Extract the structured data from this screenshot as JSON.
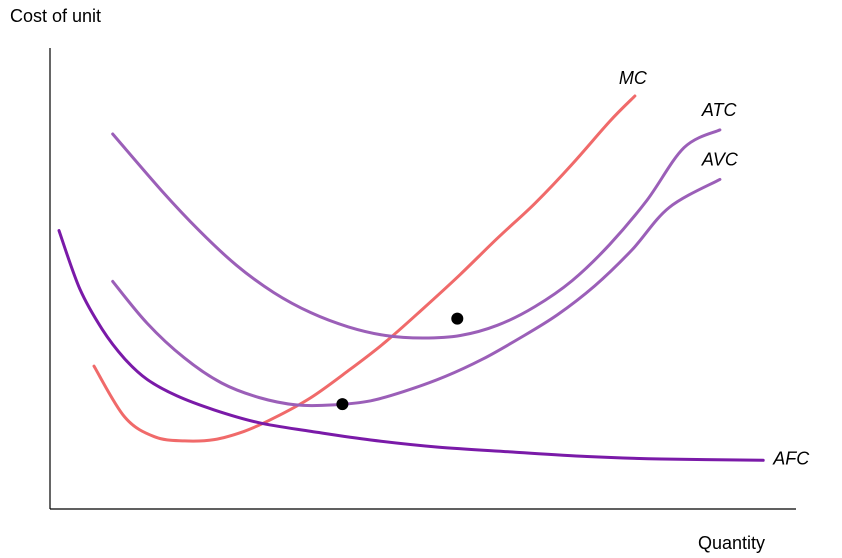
{
  "chart_data": {
    "type": "line",
    "title": "",
    "ylabel": "Cost of unit",
    "xlabel": "Quantity",
    "grid": false,
    "xlim": [
      0,
      100
    ],
    "ylim": [
      0,
      100
    ],
    "series": [
      {
        "name": "MC",
        "color": "#f06a6a",
        "x": [
          5.9,
          10,
          14,
          18,
          22,
          26,
          30,
          35,
          40,
          45,
          50,
          55,
          60,
          65,
          70,
          75,
          78.4
        ],
        "y": [
          34.6,
          22.3,
          17.5,
          16.5,
          16.8,
          18.8,
          22,
          27,
          33.5,
          40.5,
          48.5,
          56.8,
          65.6,
          74,
          83.5,
          93.8,
          100
        ]
      },
      {
        "name": "ATC",
        "color": "#9b5fb8",
        "x": [
          8.4,
          15,
          20,
          25,
          30,
          35,
          40,
          45,
          50,
          55,
          60,
          65,
          70,
          75,
          80,
          85,
          89.8
        ],
        "y": [
          90.8,
          77,
          67.4,
          59,
          52.4,
          47.5,
          44.1,
          42,
          41.4,
          42,
          44.5,
          49,
          55.3,
          64,
          74.7,
          87.5,
          91.8
        ]
      },
      {
        "name": "AVC",
        "color": "#9b5fb8",
        "x": [
          8.4,
          13,
          18,
          23,
          28,
          33,
          38,
          43,
          48,
          53,
          58,
          63,
          68,
          73,
          78,
          83,
          89.8
        ],
        "y": [
          55.1,
          45,
          36.6,
          30.5,
          27,
          25.2,
          25.2,
          26.2,
          28.8,
          32.1,
          36.3,
          41.4,
          47,
          54,
          62.7,
          73,
          79.8
        ]
      },
      {
        "name": "AFC",
        "color": "#7a1aa8",
        "x": [
          1.2,
          4,
          7,
          10,
          13,
          17,
          22,
          28,
          35,
          43,
          52,
          62,
          72,
          82,
          95.6
        ],
        "y": [
          67.4,
          53.3,
          43.5,
          36.4,
          31.4,
          27.4,
          24,
          20.9,
          18.8,
          16.7,
          15,
          13.8,
          12.7,
          12.1,
          11.8
        ]
      }
    ],
    "points": [
      {
        "x": 39.2,
        "y": 25.4
      },
      {
        "x": 54.6,
        "y": 46.1
      }
    ]
  }
}
